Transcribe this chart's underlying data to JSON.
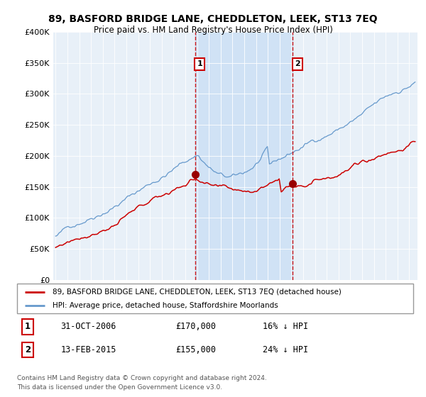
{
  "title": "89, BASFORD BRIDGE LANE, CHEDDLETON, LEEK, ST13 7EQ",
  "subtitle": "Price paid vs. HM Land Registry's House Price Index (HPI)",
  "legend_label_red": "89, BASFORD BRIDGE LANE, CHEDDLETON, LEEK, ST13 7EQ (detached house)",
  "legend_label_blue": "HPI: Average price, detached house, Staffordshire Moorlands",
  "annotation1_label": "1",
  "annotation1_date": "31-OCT-2006",
  "annotation1_price": "£170,000",
  "annotation1_hpi": "16% ↓ HPI",
  "annotation2_label": "2",
  "annotation2_date": "13-FEB-2015",
  "annotation2_price": "£155,000",
  "annotation2_hpi": "24% ↓ HPI",
  "footer": "Contains HM Land Registry data © Crown copyright and database right 2024.\nThis data is licensed under the Open Government Licence v3.0.",
  "color_red": "#cc0000",
  "color_blue": "#6699cc",
  "color_vline": "#cc0000",
  "color_shade": "#cce0f5",
  "bg_plot": "#e8f0f8",
  "bg_figure": "#ffffff",
  "ylim": [
    0,
    400000
  ],
  "yticks": [
    0,
    50000,
    100000,
    150000,
    200000,
    250000,
    300000,
    350000,
    400000
  ],
  "start_year": 1995,
  "end_year": 2025,
  "sale1_year": 2006.83,
  "sale1_value_red": 170000,
  "sale2_year": 2015.12,
  "sale2_value_red": 155000
}
